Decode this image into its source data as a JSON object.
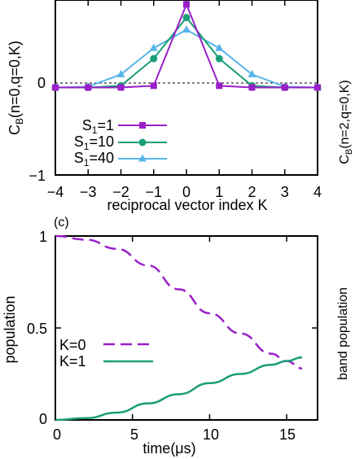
{
  "top_panel": {
    "ylabel_main": "C",
    "ylabel_sub": "B",
    "ylabel_args": "(n=0,q=0,K)",
    "right_ylabel_main": "C",
    "right_ylabel_sub": "B",
    "right_ylabel_args": "(n=2,q=0,K)",
    "xlabel": "reciprocal vector index K",
    "x_ticks": [
      "−4",
      "−3",
      "−2",
      "−1",
      "0",
      "1",
      "2",
      "3",
      "4"
    ],
    "y_ticks": [
      "−1",
      "0"
    ],
    "legend": [
      {
        "pre": "S",
        "sub": "1",
        "post": "=1"
      },
      {
        "pre": "S",
        "sub": "1",
        "post": "=10"
      },
      {
        "pre": "S",
        "sub": "1",
        "post": "=40"
      }
    ]
  },
  "bottom_panel": {
    "panel_label": "(c)",
    "ylabel": "population",
    "right_ylabel": "band population",
    "xlabel": "time(μs)",
    "x_ticks": [
      "0",
      "5",
      "10",
      "15"
    ],
    "y_ticks": [
      "0",
      "0.5",
      "1"
    ],
    "legend": [
      "K=0",
      "K=1"
    ]
  },
  "colors": {
    "purple": "#9a1fc9",
    "green": "#1a9e77",
    "blue": "#56b4e9"
  },
  "chart_data": [
    {
      "type": "line",
      "x": [
        -4,
        -3,
        -2,
        -1,
        0,
        1,
        2,
        3,
        4
      ],
      "xlabel": "reciprocal vector index K",
      "ylabel": "C_B(n=0,q=0,K)",
      "xlim": [
        -4,
        4
      ],
      "ylim": [
        -1,
        1.0
      ],
      "series": [
        {
          "name": "S1=1",
          "marker": "square",
          "color": "purple",
          "values": [
            0,
            0,
            0,
            0.02,
            0.95,
            0.02,
            0,
            0,
            0
          ]
        },
        {
          "name": "S1=10",
          "marker": "circle",
          "color": "green",
          "values": [
            0,
            0,
            0.02,
            0.33,
            0.8,
            0.33,
            0.02,
            0,
            0
          ]
        },
        {
          "name": "S1=40",
          "marker": "triangle",
          "color": "blue",
          "values": [
            0,
            0.01,
            0.15,
            0.45,
            0.66,
            0.45,
            0.15,
            0.01,
            0
          ]
        }
      ]
    },
    {
      "type": "line",
      "xlabel": "time(μs)",
      "ylabel": "population",
      "xlim": [
        0,
        17
      ],
      "ylim": [
        0,
        1
      ],
      "series": [
        {
          "name": "K=0",
          "style": "dashed",
          "color": "purple",
          "x": [
            0,
            2,
            4,
            6,
            8,
            10,
            12,
            14,
            15,
            16
          ],
          "values": [
            1.0,
            0.98,
            0.93,
            0.84,
            0.71,
            0.58,
            0.47,
            0.36,
            0.32,
            0.28
          ]
        },
        {
          "name": "K=1",
          "style": "solid",
          "color": "green",
          "x": [
            0,
            2,
            4,
            6,
            8,
            10,
            12,
            14,
            15,
            16
          ],
          "values": [
            0.0,
            0.01,
            0.04,
            0.09,
            0.14,
            0.2,
            0.25,
            0.3,
            0.32,
            0.34
          ]
        }
      ]
    }
  ]
}
